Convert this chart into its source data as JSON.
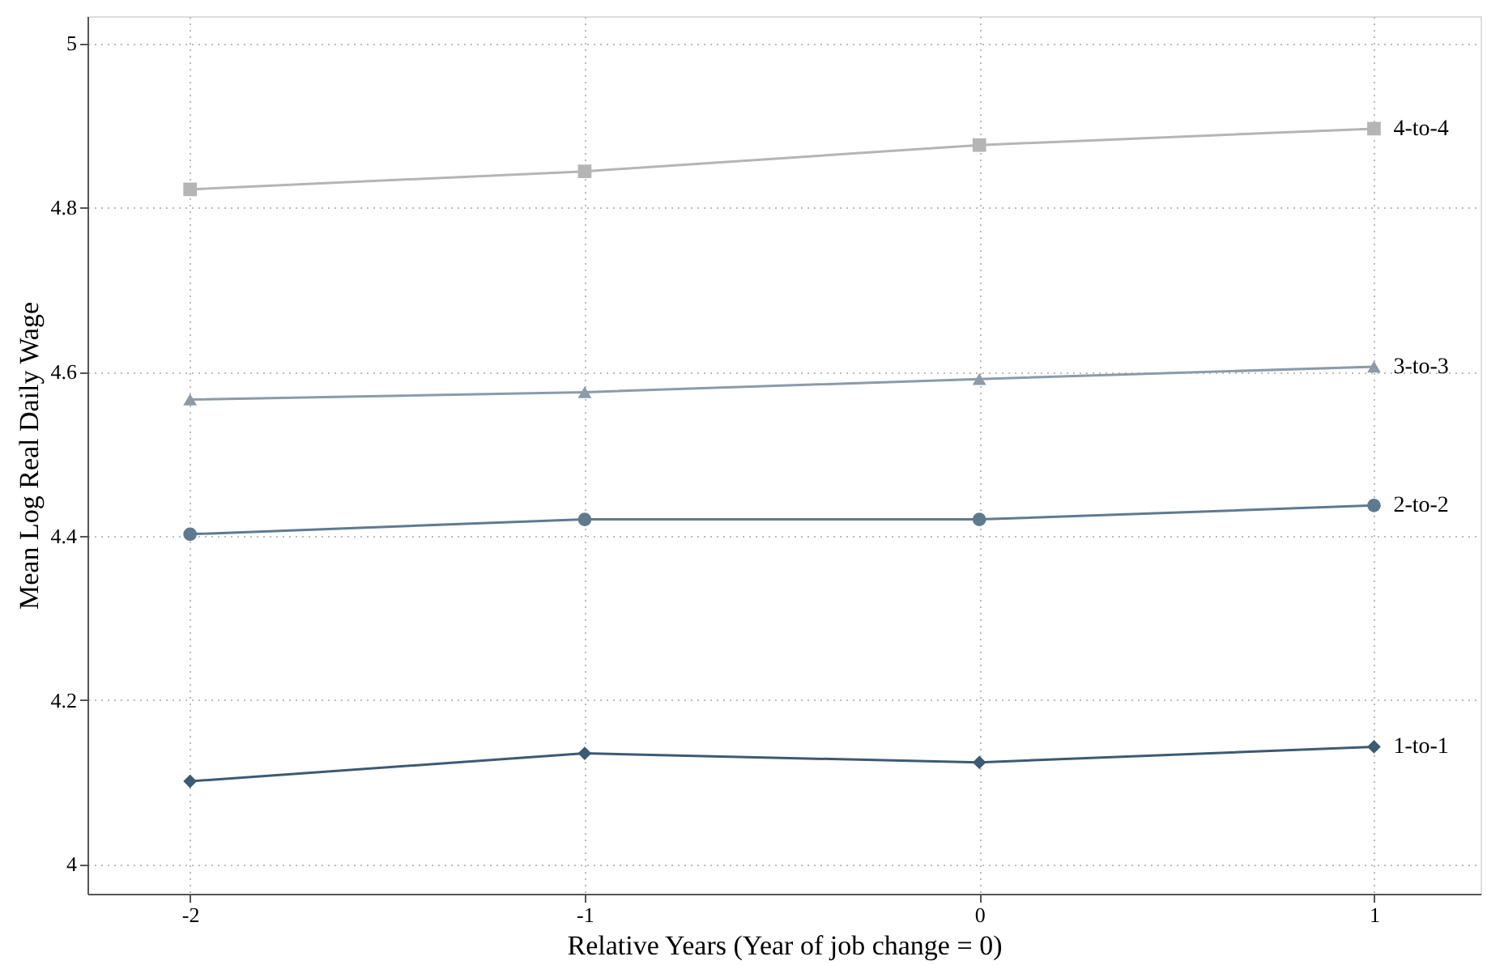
{
  "chart_data": {
    "type": "line",
    "xlabel": "Relative Years (Year of job change = 0)",
    "ylabel": "Mean Log Real Daily Wage",
    "x": [
      -2,
      -1,
      0,
      1
    ],
    "xlim": [
      -2.26,
      1.27
    ],
    "xticks": [
      -2,
      -1,
      0,
      1
    ],
    "ylim": [
      3.964,
      5.033
    ],
    "yticks": [
      4,
      4.2,
      4.4,
      4.6,
      4.8,
      5
    ],
    "grid": true,
    "legend": false,
    "series": [
      {
        "name": "1-to-1",
        "color": "#3d5a73",
        "marker": "diamond",
        "values": [
          4.101,
          4.135,
          4.124,
          4.143
        ]
      },
      {
        "name": "2-to-2",
        "color": "#5f7a8f",
        "marker": "circle",
        "values": [
          4.402,
          4.42,
          4.42,
          4.437
        ]
      },
      {
        "name": "3-to-3",
        "color": "#8c9ba7",
        "marker": "triangle",
        "values": [
          4.566,
          4.575,
          4.591,
          4.606
        ]
      },
      {
        "name": "4-to-4",
        "color": "#b5b5b5",
        "marker": "square",
        "values": [
          4.822,
          4.844,
          4.876,
          4.896
        ]
      }
    ]
  }
}
